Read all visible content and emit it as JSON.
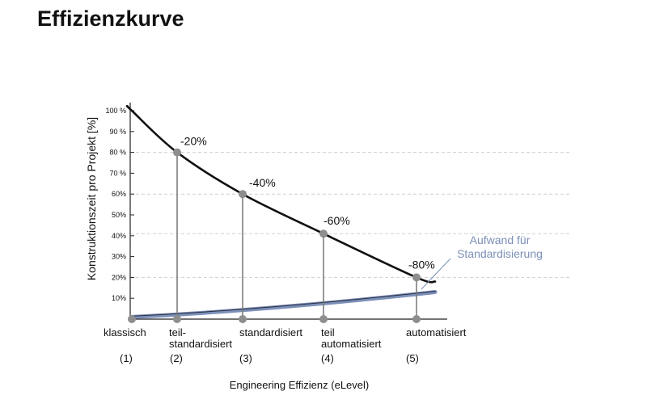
{
  "title": "Effizienzkurve",
  "chart_data": {
    "type": "line",
    "ylabel": "Konstruktionszeit pro Projekt [%]",
    "xlabel": "Engineering Effizienz (eLevel)",
    "y_ticks": [
      "100 %",
      "90 %",
      "80 %",
      "70 %",
      "60%",
      "50%",
      "40%",
      "30%",
      "20%",
      "10%"
    ],
    "categories": [
      {
        "lines": [
          "klassisch"
        ],
        "num": "(1)"
      },
      {
        "lines": [
          "teil-",
          "standardisiert"
        ],
        "num": "(2)"
      },
      {
        "lines": [
          "standardisiert"
        ],
        "num": "(3)"
      },
      {
        "lines": [
          "teil",
          "automatisiert"
        ],
        "num": "(4)"
      },
      {
        "lines": [
          "automatisiert"
        ],
        "num": "(5)"
      }
    ],
    "series": [
      {
        "values": [
          100,
          80,
          60,
          41,
          20
        ],
        "point_labels": [
          "",
          "-20%",
          "-40%",
          "-60%",
          "-80%"
        ]
      },
      {
        "name": "Aufwand für Standardisierung",
        "values": [
          1,
          2.5,
          5.5,
          8,
          13
        ]
      }
    ],
    "dashed_levels": [
      80,
      60,
      41,
      20
    ],
    "ylim": [
      0,
      104
    ],
    "colors": {
      "main": "#111111",
      "effort": "#7b8fb8",
      "drop": "#777777",
      "marker": "#8e8e8e",
      "grid": "#cfcfcf"
    },
    "legend": "right"
  }
}
